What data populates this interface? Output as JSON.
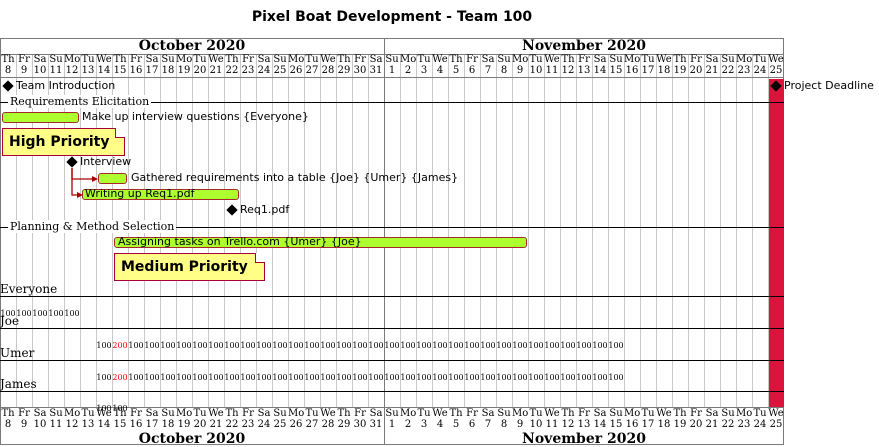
{
  "title": "Pixel Boat Development - Team 100",
  "months": [
    {
      "name": "October 2020",
      "start_index": 0,
      "end_index": 23
    },
    {
      "name": "November 2020",
      "start_index": 24,
      "end_index": 48
    }
  ],
  "day_letters": [
    "Th",
    "Fr",
    "Sa",
    "Su",
    "Mo",
    "Tu",
    "We",
    "Th",
    "Fr",
    "Sa",
    "Su",
    "Mo",
    "Tu",
    "We",
    "Th",
    "Fr",
    "Sa",
    "Su",
    "Mo",
    "Tu",
    "We",
    "Th",
    "Fr",
    "Sa",
    "Su",
    "Mo",
    "Tu",
    "We",
    "Th",
    "Fr",
    "Sa",
    "Su",
    "Mo",
    "Tu",
    "We",
    "Th",
    "Fr",
    "Sa",
    "Su",
    "Mo",
    "Tu",
    "We",
    "Th",
    "Fr",
    "Sa",
    "Su",
    "Mo",
    "Tu",
    "We"
  ],
  "day_numbers": [
    "8",
    "9",
    "10",
    "11",
    "12",
    "13",
    "14",
    "15",
    "16",
    "17",
    "18",
    "19",
    "20",
    "21",
    "22",
    "23",
    "24",
    "25",
    "26",
    "27",
    "28",
    "29",
    "30",
    "31",
    "1",
    "2",
    "3",
    "4",
    "5",
    "6",
    "7",
    "8",
    "9",
    "10",
    "11",
    "12",
    "13",
    "14",
    "15",
    "16",
    "17",
    "18",
    "19",
    "20",
    "21",
    "22",
    "23",
    "24",
    "25"
  ],
  "separators": {
    "requirements": "Requirements Elicitation",
    "planning": "Planning & Method Selection"
  },
  "tasks": {
    "team_intro": "Team Introduction",
    "interview_questions": "Make up interview questions {Everyone}",
    "interview": "Interview",
    "gathered": "Gathered requirements into a table {Joe} {Umer} {James}",
    "writing_up": "Writing up Req1.pdf",
    "req1": "Req1.pdf",
    "trello": "Assigning tasks on Trello.com {Umer} {Joe}",
    "deadline": "Project Deadline"
  },
  "notes": {
    "high": "High Priority",
    "medium": "Medium Priority"
  },
  "resources": [
    {
      "name": "Everyone",
      "start": 0,
      "values": [
        "100",
        "100",
        "100",
        "100",
        "100"
      ],
      "over": []
    },
    {
      "name": "Joe",
      "start": 6,
      "values": [
        "100",
        "200",
        "100",
        "100",
        "100",
        "100",
        "100",
        "100",
        "100",
        "100",
        "100",
        "100",
        "100",
        "100",
        "100",
        "100",
        "100",
        "100",
        "100",
        "100",
        "100",
        "100",
        "100",
        "100",
        "100",
        "100",
        "100",
        "100",
        "100",
        "100",
        "100",
        "100",
        "100"
      ],
      "over": [
        1
      ]
    },
    {
      "name": "Umer",
      "start": 6,
      "values": [
        "100",
        "200",
        "100",
        "100",
        "100",
        "100",
        "100",
        "100",
        "100",
        "100",
        "100",
        "100",
        "100",
        "100",
        "100",
        "100",
        "100",
        "100",
        "100",
        "100",
        "100",
        "100",
        "100",
        "100",
        "100",
        "100",
        "100",
        "100",
        "100",
        "100",
        "100",
        "100",
        "100"
      ],
      "over": [
        1
      ]
    },
    {
      "name": "James",
      "start": 6,
      "values": [
        "100",
        "100"
      ],
      "over": []
    }
  ],
  "colors": {
    "task_fill": "#adff2f",
    "task_border": "#a52a2a",
    "note_fill": "#ffff88",
    "deadline": "#dc143c",
    "overload": "#ff0000"
  }
}
